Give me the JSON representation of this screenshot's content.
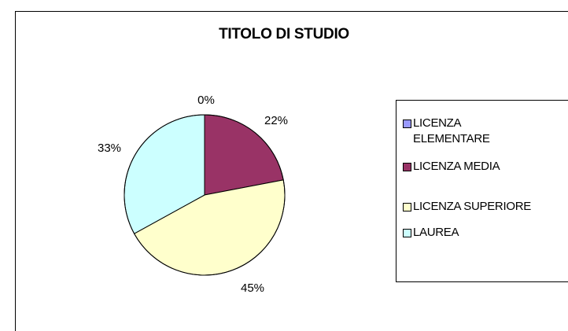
{
  "chart_data": {
    "type": "pie",
    "title": "TITOLO DI STUDIO",
    "categories": [
      "LICENZA\nELEMENTARE",
      "LICENZA MEDIA",
      "LICENZA SUPERIORE",
      "LAUREA"
    ],
    "values": [
      0,
      22,
      45,
      33
    ],
    "labels": [
      "0%",
      "22%",
      "45%",
      "33%"
    ],
    "colors": [
      "#9999ff",
      "#993366",
      "#ffffcc",
      "#ccffff"
    ],
    "legend": "right"
  }
}
